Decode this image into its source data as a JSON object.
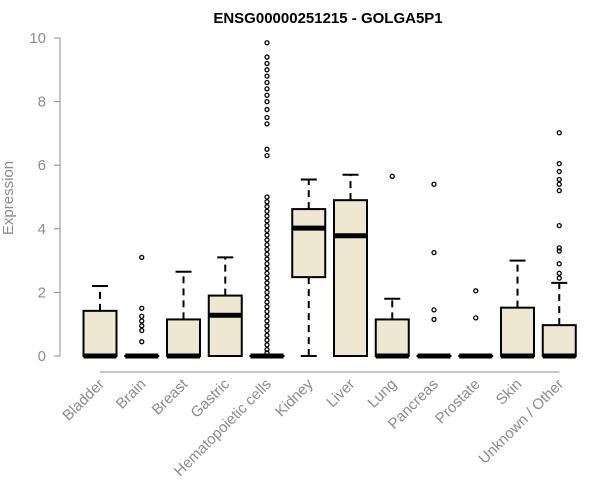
{
  "chart_data": {
    "type": "boxplot",
    "title": "ENSG00000251215 - GOLGA5P1",
    "xlabel": "",
    "ylabel": "Expression",
    "ylim": [
      0,
      10
    ],
    "yticks": [
      0,
      2,
      4,
      6,
      8,
      10
    ],
    "box_fill": "#EEE8D0",
    "box_stroke": "#000000",
    "categories": [
      "Bladder",
      "Brain",
      "Breast",
      "Gastric",
      "Hematopoietic cells",
      "Kidney",
      "Liver",
      "Lung",
      "Pancreas",
      "Prostate",
      "Skin",
      "Unknown / Other"
    ],
    "boxes": [
      {
        "q1": 0,
        "median": 0,
        "q3": 1.42,
        "whisker_low": 0,
        "whisker_high": 2.2,
        "outliers": []
      },
      {
        "q1": 0,
        "median": 0,
        "q3": 0,
        "whisker_low": 0,
        "whisker_high": 0,
        "outliers": [
          0.45,
          0.8,
          0.95,
          1.1,
          1.25,
          1.5,
          3.1
        ]
      },
      {
        "q1": 0,
        "median": 0,
        "q3": 1.15,
        "whisker_low": 0,
        "whisker_high": 2.65,
        "outliers": []
      },
      {
        "q1": 0,
        "median": 1.28,
        "q3": 1.9,
        "whisker_low": 0,
        "whisker_high": 3.1,
        "outliers": []
      },
      {
        "q1": 0,
        "median": 0,
        "q3": 0,
        "whisker_low": 0,
        "whisker_high": 0,
        "outliers": [
          0.1,
          0.2,
          0.35,
          0.5,
          0.65,
          0.8,
          0.95,
          1.1,
          1.25,
          1.4,
          1.55,
          1.7,
          1.85,
          2.0,
          2.15,
          2.3,
          2.45,
          2.6,
          2.75,
          2.9,
          3.05,
          3.2,
          3.35,
          3.5,
          3.65,
          3.8,
          3.95,
          4.1,
          4.25,
          4.4,
          4.55,
          4.7,
          4.85,
          5.0,
          6.3,
          6.5,
          7.3,
          7.5,
          7.75,
          8.0,
          8.2,
          8.4,
          8.6,
          8.8,
          9.0,
          9.2,
          9.4,
          9.85
        ]
      },
      {
        "q1": 2.48,
        "median": 4.02,
        "q3": 4.62,
        "whisker_low": 0,
        "whisker_high": 5.55,
        "outliers": []
      },
      {
        "q1": 0,
        "median": 3.78,
        "q3": 4.9,
        "whisker_low": 0,
        "whisker_high": 5.7,
        "outliers": []
      },
      {
        "q1": 0,
        "median": 0,
        "q3": 1.15,
        "whisker_low": 0,
        "whisker_high": 1.8,
        "outliers": [
          5.65
        ]
      },
      {
        "q1": 0,
        "median": 0,
        "q3": 0,
        "whisker_low": 0,
        "whisker_high": 0,
        "outliers": [
          1.15,
          1.45,
          3.25,
          5.4
        ]
      },
      {
        "q1": 0,
        "median": 0,
        "q3": 0,
        "whisker_low": 0,
        "whisker_high": 0,
        "outliers": [
          1.2,
          2.05
        ]
      },
      {
        "q1": 0,
        "median": 0,
        "q3": 1.52,
        "whisker_low": 0,
        "whisker_high": 3.0,
        "outliers": []
      },
      {
        "q1": 0,
        "median": 0,
        "q3": 0.97,
        "whisker_low": 0,
        "whisker_high": 2.3,
        "outliers": [
          2.45,
          2.6,
          2.9,
          3.3,
          3.4,
          4.1,
          5.2,
          5.4,
          5.55,
          5.8,
          6.05,
          7.02
        ]
      }
    ]
  }
}
